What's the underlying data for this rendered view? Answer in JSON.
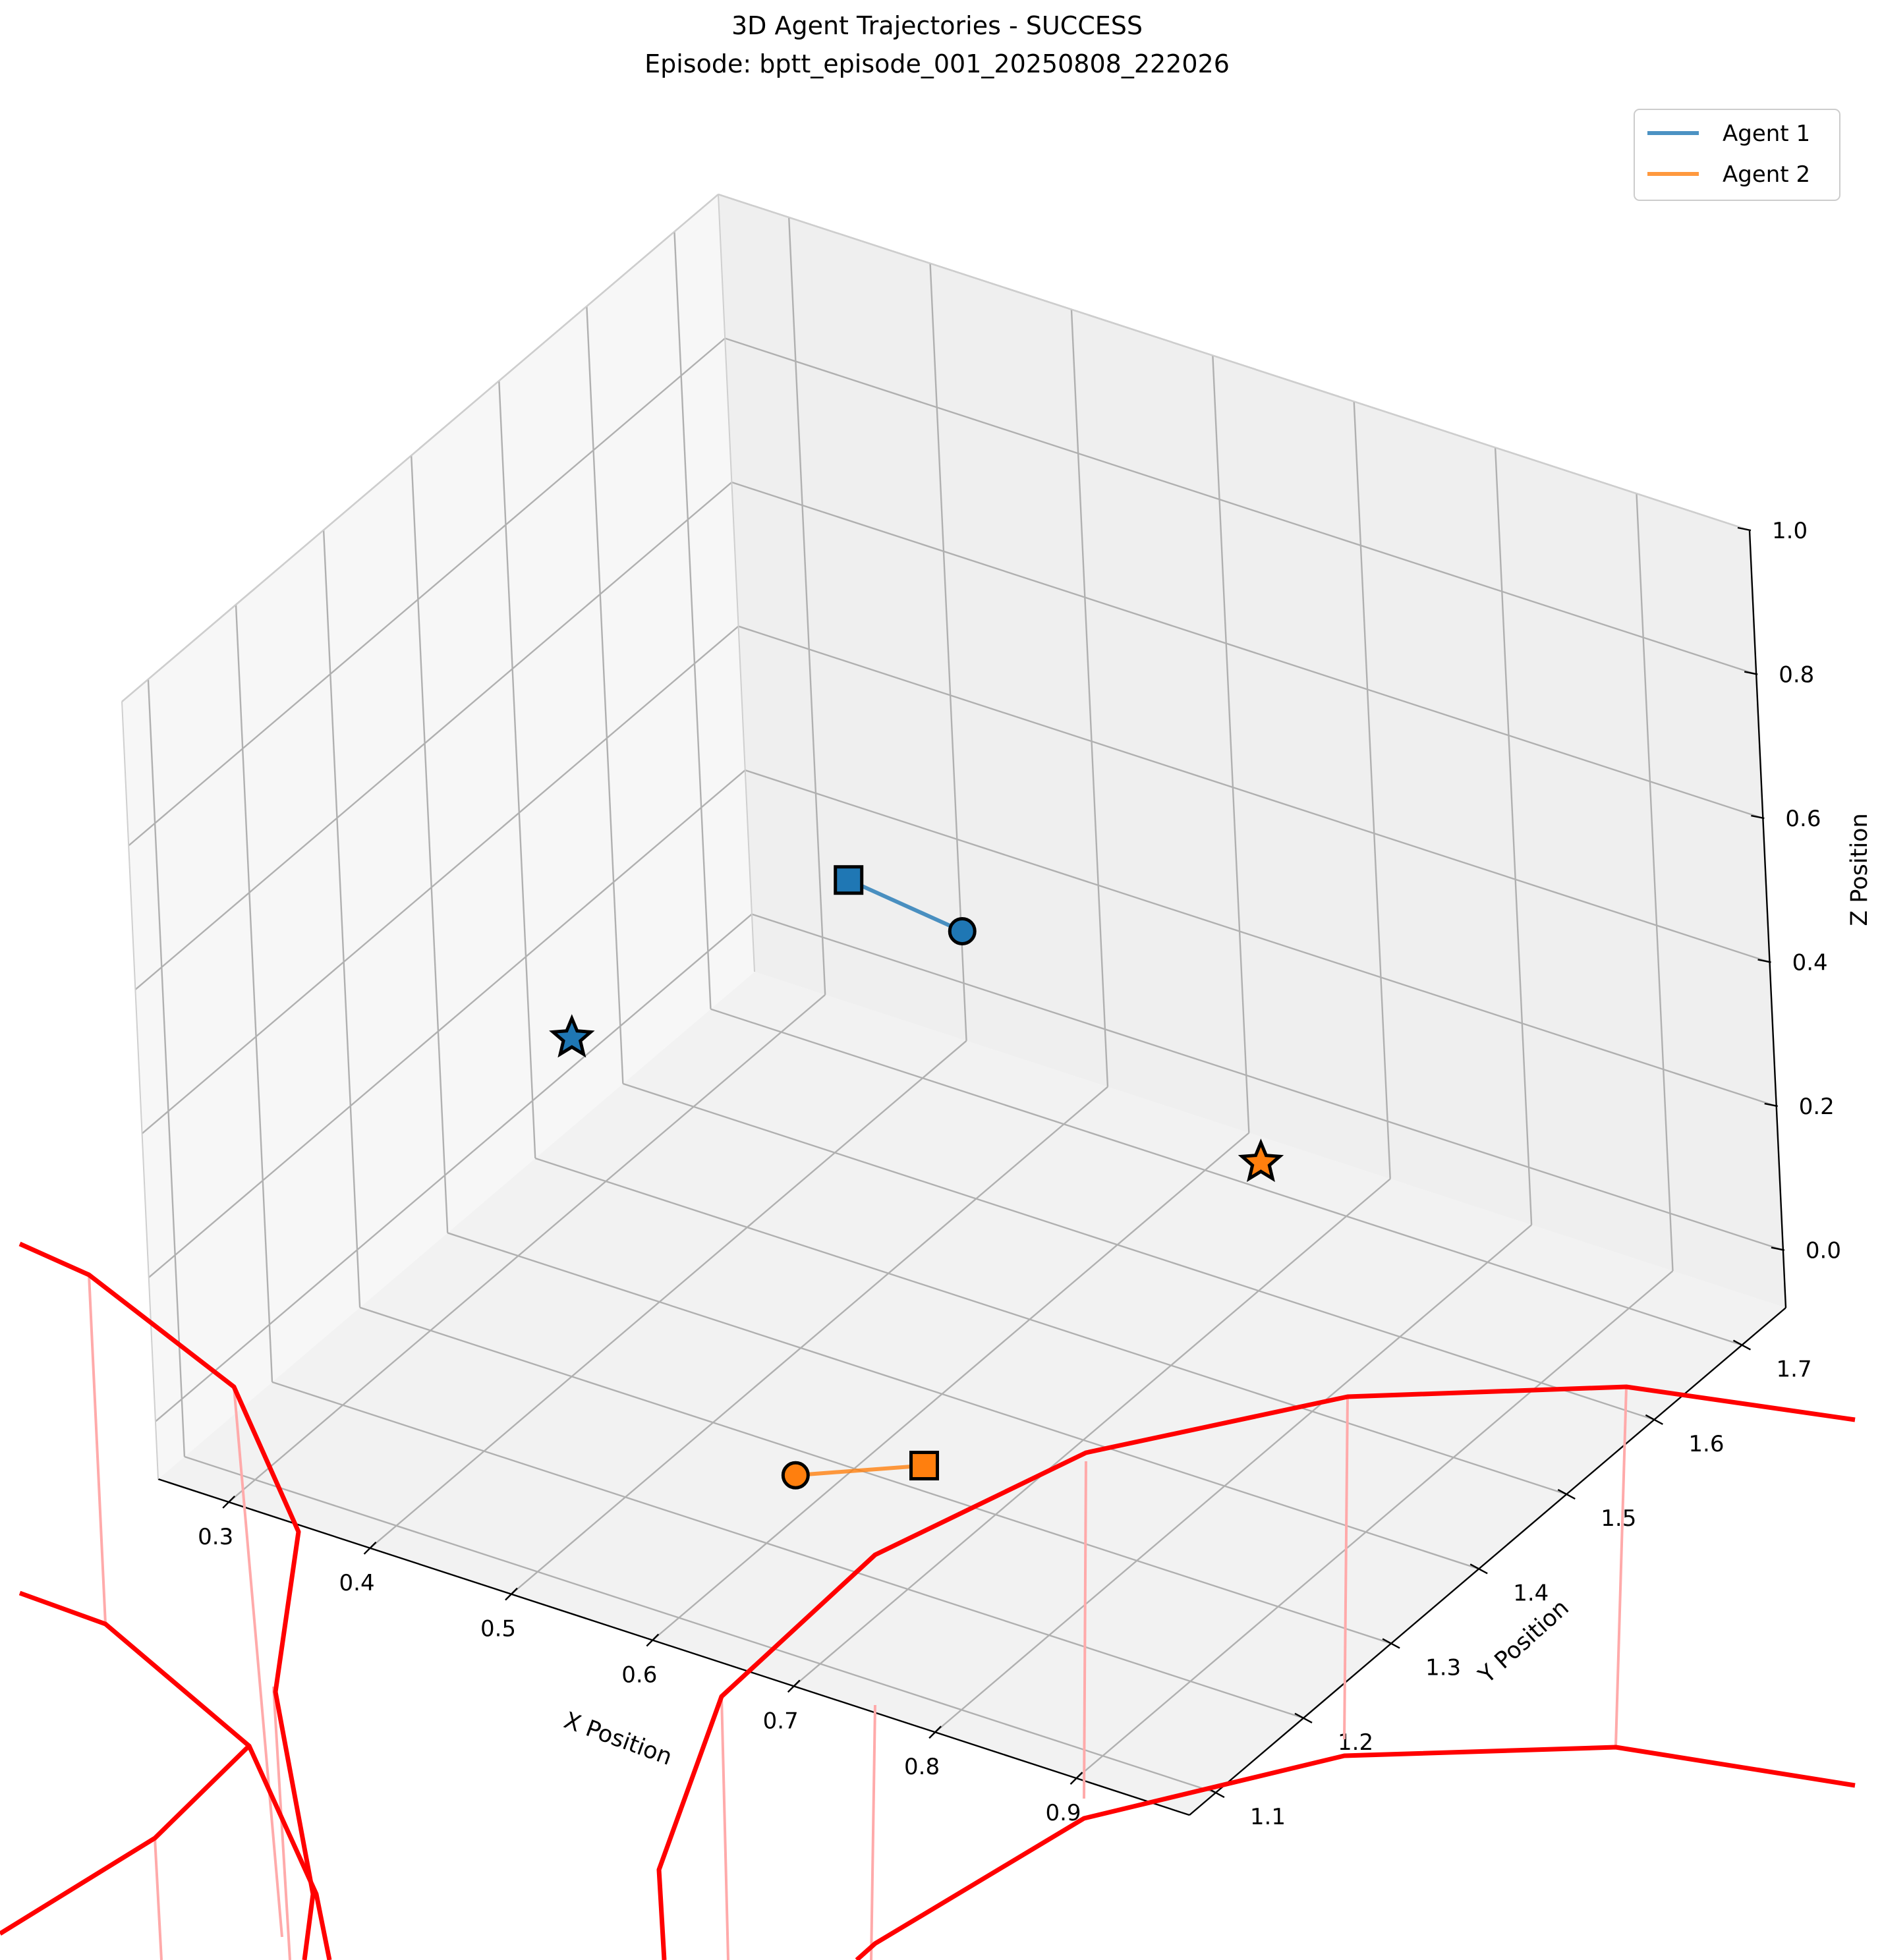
{
  "chart_data": {
    "type": "scatter",
    "projection": "3d",
    "title": "3D Agent Trajectories - SUCCESS",
    "subtitle": "Episode: bptt_episode_001_20250808_222026",
    "xlabel": "X Position",
    "ylabel": "Y Position",
    "zlabel": "Z Position",
    "x_ticks": [
      "0.3",
      "0.4",
      "0.5",
      "0.6",
      "0.7",
      "0.8",
      "0.9"
    ],
    "y_ticks": [
      "1.1",
      "1.2",
      "1.3",
      "1.4",
      "1.5",
      "1.6",
      "1.7"
    ],
    "z_ticks": [
      "0.0",
      "0.2",
      "0.4",
      "0.6",
      "0.8",
      "1.0"
    ],
    "xlim": [
      0.25,
      0.98
    ],
    "ylim": [
      1.07,
      1.75
    ],
    "zlim": [
      -0.08,
      1.0
    ],
    "grid": true,
    "legend_position": "top-right",
    "colors": {
      "agent1": "#1f77b4",
      "agent2": "#ff7f0e",
      "boundary": "#ff0000",
      "boundary_drop": "#ffaaaa"
    },
    "series": [
      {
        "name": "Agent 1",
        "color": "#1f77b4",
        "trajectory": [
          [
            0.36,
            1.69,
            0.18
          ],
          [
            0.44,
            1.69,
            0.16
          ]
        ],
        "start": [
          0.44,
          1.69,
          0.16
        ],
        "end": [
          0.36,
          1.69,
          0.18
        ],
        "goal": [
          0.3,
          1.47,
          0.15
        ]
      },
      {
        "name": "Agent 2",
        "color": "#ff7f0e",
        "trajectory": [
          [
            0.67,
            1.27,
            0.0
          ],
          [
            0.61,
            1.22,
            0.0
          ]
        ],
        "start": [
          0.61,
          1.22,
          0.0
        ],
        "end": [
          0.67,
          1.27,
          0.0
        ],
        "goal": [
          0.66,
          1.67,
          0.0
        ]
      }
    ],
    "marker_legend": {
      "start": "circle",
      "end": "square",
      "goal": "star"
    }
  }
}
